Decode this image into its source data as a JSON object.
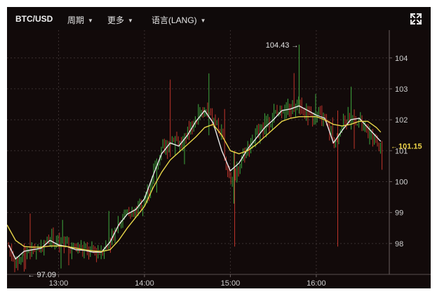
{
  "toolbar": {
    "symbol": "BTC/USD",
    "period_label": "周期",
    "more_label": "更多",
    "language_label": "语言(LANG)",
    "expand_icon": "expand-arrows-icon"
  },
  "chart_data": {
    "type": "candlestick",
    "title": "",
    "xlabel": "",
    "ylabel": "",
    "x_ticks": [
      "13:00",
      "14:00",
      "15:00",
      "16:00"
    ],
    "y_ticks": [
      98,
      99,
      100,
      101,
      102,
      103,
      104
    ],
    "ylim": [
      97.0,
      104.9
    ],
    "x_range_hours": [
      12.4,
      16.85
    ],
    "grid": true,
    "annotations": {
      "max_label": "104.43",
      "min_label": "97.09",
      "last_price_label": "101.15"
    },
    "colors": {
      "up": "#3ea83e",
      "down": "#c0352b",
      "ma_fast": "#e8e8e8",
      "ma_slow": "#e8d64a",
      "last_price": "#ecd348",
      "grid": "#3a3030"
    },
    "series": [
      {
        "role": "price",
        "t": [
          12.42,
          12.5,
          12.6,
          12.7,
          12.8,
          12.9,
          13.0,
          13.1,
          13.2,
          13.3,
          13.4,
          13.5,
          13.6,
          13.7,
          13.8,
          13.9,
          14.0,
          14.05,
          14.1,
          14.15,
          14.2,
          14.25,
          14.3,
          14.35,
          14.4,
          14.45,
          14.5,
          14.6,
          14.7,
          14.8,
          14.9,
          14.95,
          15.0,
          15.05,
          15.1,
          15.15,
          15.2,
          15.25,
          15.3,
          15.4,
          15.5,
          15.6,
          15.7,
          15.8,
          15.85,
          15.9,
          15.95,
          16.0,
          16.05,
          16.1,
          16.15,
          16.2,
          16.25,
          16.3,
          16.35,
          16.4,
          16.45,
          16.5,
          16.55,
          16.6,
          16.65,
          16.7,
          16.75
        ],
        "values": [
          97.9,
          97.35,
          97.75,
          97.8,
          97.85,
          98.2,
          97.95,
          97.9,
          97.85,
          97.8,
          97.75,
          97.75,
          98.1,
          98.7,
          99.0,
          99.05,
          99.4,
          99.7,
          100.3,
          100.6,
          101.0,
          101.05,
          101.3,
          101.5,
          101.2,
          101.3,
          101.6,
          102.0,
          102.3,
          102.0,
          101.5,
          100.6,
          100.1,
          100.3,
          100.5,
          100.9,
          101.1,
          101.3,
          101.5,
          101.8,
          102.1,
          102.4,
          102.3,
          102.5,
          102.3,
          102.2,
          102.1,
          102.2,
          102.1,
          102.0,
          101.75,
          101.3,
          101.55,
          101.85,
          102.0,
          102.1,
          102.05,
          102.0,
          101.7,
          101.55,
          101.4,
          101.3,
          101.15
        ]
      },
      {
        "role": "ma_fast",
        "t": [
          12.42,
          12.5,
          12.6,
          12.7,
          12.8,
          12.9,
          13.0,
          13.1,
          13.2,
          13.3,
          13.4,
          13.5,
          13.6,
          13.7,
          13.8,
          13.9,
          14.0,
          14.1,
          14.2,
          14.3,
          14.4,
          14.5,
          14.6,
          14.7,
          14.8,
          14.9,
          15.0,
          15.1,
          15.2,
          15.3,
          15.4,
          15.5,
          15.6,
          15.7,
          15.8,
          15.9,
          16.0,
          16.1,
          16.2,
          16.3,
          16.4,
          16.5,
          16.6,
          16.7,
          16.75
        ],
        "values": [
          97.95,
          97.5,
          97.75,
          97.8,
          97.85,
          98.1,
          97.95,
          97.9,
          97.8,
          97.78,
          97.72,
          97.72,
          98.05,
          98.6,
          98.95,
          99.1,
          99.45,
          100.2,
          100.9,
          101.25,
          101.15,
          101.5,
          101.95,
          102.3,
          101.9,
          101.0,
          100.35,
          100.6,
          101.05,
          101.4,
          101.75,
          102.0,
          102.3,
          102.35,
          102.45,
          102.3,
          102.15,
          102.05,
          101.25,
          101.65,
          102.0,
          102.05,
          101.75,
          101.45,
          101.3
        ]
      },
      {
        "role": "ma_slow",
        "t": [
          12.4,
          12.5,
          12.6,
          12.7,
          12.8,
          12.9,
          13.0,
          13.1,
          13.2,
          13.3,
          13.4,
          13.5,
          13.6,
          13.7,
          13.8,
          13.9,
          14.0,
          14.1,
          14.2,
          14.3,
          14.4,
          14.5,
          14.6,
          14.7,
          14.8,
          14.9,
          15.0,
          15.1,
          15.2,
          15.3,
          15.4,
          15.5,
          15.6,
          15.7,
          15.8,
          15.9,
          16.0,
          16.1,
          16.2,
          16.3,
          16.4,
          16.5,
          16.6,
          16.7,
          16.75
        ],
        "values": [
          98.6,
          98.1,
          97.9,
          97.88,
          97.88,
          97.92,
          97.92,
          97.9,
          97.85,
          97.8,
          97.76,
          97.74,
          97.8,
          98.1,
          98.5,
          98.85,
          99.2,
          99.8,
          100.3,
          100.7,
          100.95,
          101.2,
          101.45,
          101.75,
          101.85,
          101.5,
          101.0,
          100.9,
          101.0,
          101.2,
          101.45,
          101.7,
          101.95,
          102.05,
          102.1,
          102.1,
          102.1,
          102.0,
          101.85,
          101.8,
          101.85,
          101.95,
          101.95,
          101.75,
          101.6
        ]
      }
    ]
  }
}
